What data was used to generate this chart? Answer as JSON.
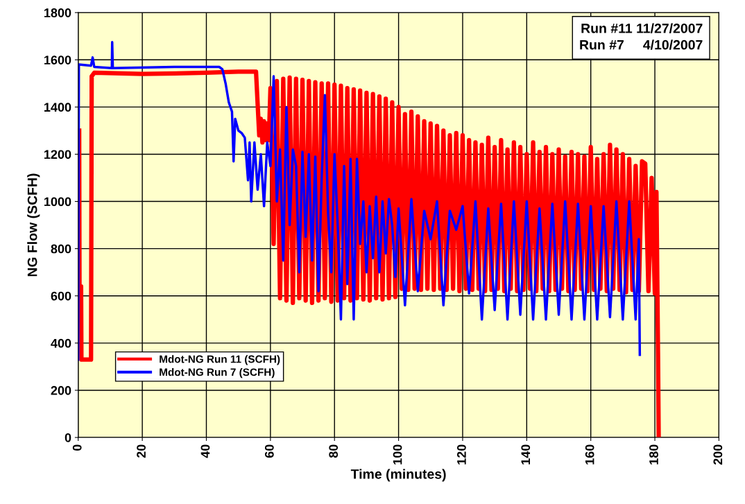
{
  "chart_data": {
    "type": "line",
    "xlabel": "Time (minutes)",
    "ylabel": "NG Flow (SCFH)",
    "xlim": [
      0,
      200
    ],
    "ylim": [
      0,
      1800
    ],
    "xticks": [
      0,
      20,
      40,
      60,
      80,
      100,
      120,
      140,
      160,
      180,
      200
    ],
    "yticks": [
      0,
      200,
      400,
      600,
      800,
      1000,
      1200,
      1400,
      1600,
      1800
    ],
    "grid": true,
    "legend": "bottom left",
    "line_style": "solid",
    "marker": "none",
    "annotations": [
      "Run #11 11/27/2007\nRun #7     4/10/2007"
    ],
    "series": [
      {
        "name": "Mdot-NG Run 11 (SCFH)",
        "color": "#ff0000",
        "x": [
          0.3,
          0.4,
          0.6,
          0.9,
          1.0,
          4.0,
          4.2,
          5,
          20,
          40,
          50,
          55.5,
          56.5,
          57,
          57.5,
          58,
          58.5,
          59,
          59.5,
          60,
          61,
          62,
          63,
          64,
          65,
          66,
          67,
          68,
          69,
          70,
          71,
          72,
          73,
          74,
          75,
          76,
          77,
          78,
          79,
          80,
          81,
          82,
          83,
          84,
          85,
          86,
          87,
          88,
          89,
          90,
          91,
          92,
          93,
          94,
          95,
          96,
          97,
          98,
          99,
          100,
          101,
          102,
          103,
          104,
          105,
          106,
          107,
          108,
          109,
          110,
          111,
          112,
          113,
          114,
          115,
          116,
          117,
          118,
          119,
          120,
          121,
          122,
          123,
          124,
          125,
          126,
          127,
          128,
          129,
          130,
          131,
          132,
          133,
          134,
          135,
          136,
          137,
          138,
          139,
          140,
          141,
          142,
          143,
          144,
          145,
          146,
          147,
          148,
          149,
          150,
          151,
          152,
          153,
          154,
          155,
          156,
          157,
          158,
          159,
          160,
          161,
          162,
          163,
          164,
          165,
          166,
          167,
          168,
          169,
          170,
          171,
          172,
          173,
          174,
          175,
          176,
          177,
          178,
          179,
          180,
          180.5,
          181,
          181.2
        ],
        "values": [
          1300,
          640,
          640,
          640,
          330,
          330,
          1530,
          1545,
          1540,
          1545,
          1550,
          1550,
          1280,
          1350,
          1250,
          1340,
          1260,
          1330,
          1260,
          1480,
          820,
          1510,
          590,
          1520,
          580,
          1525,
          570,
          1520,
          590,
          1515,
          580,
          1510,
          570,
          1505,
          580,
          1500,
          590,
          1500,
          575,
          1495,
          580,
          1490,
          590,
          1480,
          580,
          1475,
          590,
          1470,
          585,
          1460,
          580,
          1455,
          590,
          1445,
          585,
          1435,
          590,
          1420,
          595,
          1400,
          630,
          1370,
          625,
          1380,
          630,
          1360,
          625,
          1340,
          630,
          1330,
          625,
          1320,
          630,
          1300,
          625,
          1280,
          630,
          1290,
          620,
          1280,
          630,
          1260,
          625,
          1250,
          630,
          1240,
          620,
          1270,
          625,
          1230,
          630,
          1260,
          620,
          1220,
          630,
          1250,
          620,
          1230,
          625,
          1200,
          630,
          1250,
          620,
          1210,
          630,
          1230,
          620,
          1200,
          625,
          1220,
          630,
          1190,
          620,
          1210,
          625,
          1200,
          630,
          1190,
          620,
          1230,
          625,
          1180,
          630,
          1200,
          620,
          1240,
          630,
          1220,
          625,
          1200,
          615,
          1180,
          625,
          1150,
          620,
          1170,
          1160,
          620,
          1100,
          610,
          1040,
          340,
          0
        ]
      },
      {
        "name": "Mdot-NG Run 7 (SCFH)",
        "color": "#0000ff",
        "x": [
          0,
          0.2,
          4,
          4.5,
          5,
          10.5,
          10.6,
          10.8,
          30,
          44,
          45,
          46,
          47,
          48,
          48.5,
          49,
          50,
          51,
          52,
          53,
          53.5,
          54,
          55,
          56,
          57,
          58,
          59,
          60,
          61,
          62,
          63,
          64,
          65,
          66,
          67,
          68,
          69,
          70,
          71,
          72,
          73,
          74,
          75,
          76,
          77,
          78,
          79,
          80,
          81,
          82,
          83,
          84,
          85,
          86,
          87,
          88,
          89,
          90,
          91,
          92,
          93,
          94,
          95,
          96,
          97,
          98,
          99,
          100,
          102,
          104,
          106,
          108,
          110,
          112,
          114,
          116,
          118,
          120,
          122,
          124,
          126,
          128,
          130,
          132,
          134,
          136,
          138,
          140,
          142,
          144,
          146,
          148,
          150,
          152,
          154,
          156,
          158,
          160,
          162,
          164,
          166,
          168,
          170,
          172,
          174,
          175,
          175.3
        ],
        "values": [
          330,
          1580,
          1575,
          1610,
          1570,
          1565,
          1675,
          1565,
          1570,
          1570,
          1560,
          1500,
          1420,
          1380,
          1170,
          1350,
          1300,
          1290,
          1270,
          1090,
          1250,
          1000,
          1250,
          1050,
          1200,
          980,
          1250,
          1150,
          1530,
          1000,
          1220,
          750,
          1400,
          900,
          1220,
          1150,
          700,
          1210,
          850,
          1200,
          750,
          1190,
          620,
          1100,
          1450,
          950,
          700,
          1200,
          900,
          500,
          1150,
          650,
          1180,
          500,
          1180,
          820,
          1000,
          700,
          980,
          760,
          1020,
          700,
          1000,
          780,
          1010,
          900,
          680,
          970,
          560,
          1010,
          620,
          960,
          840,
          1000,
          560,
          960,
          880,
          980,
          610,
          1000,
          500,
          970,
          540,
          990,
          500,
          1000,
          520,
          1000,
          500,
          970,
          500,
          990,
          520,
          1000,
          500,
          990,
          500,
          980,
          500,
          980,
          510,
          1000,
          500,
          1000,
          500,
          840,
          350
        ]
      }
    ]
  }
}
